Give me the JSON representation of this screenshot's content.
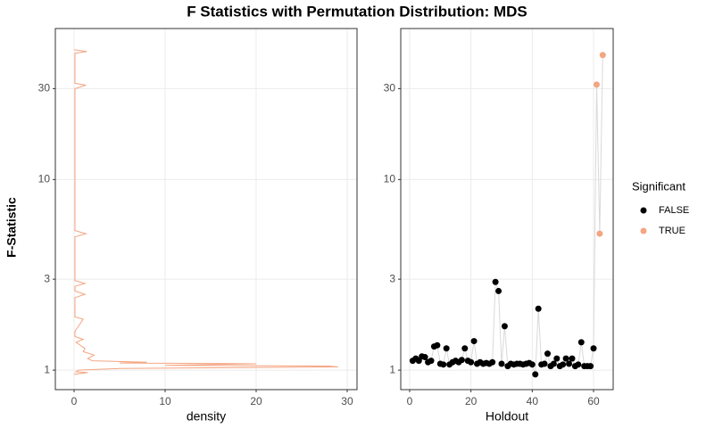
{
  "title": "F Statistics with Permutation Distribution: MDS",
  "y_label": "F-Statistic",
  "chart_data": [
    {
      "type": "line",
      "x_label": "density",
      "xlim": [
        -2.06,
        31.08
      ],
      "xticks": [
        0,
        10,
        20,
        30
      ],
      "ylim": [
        0.79,
        62
      ],
      "yticks": [
        1,
        3,
        10,
        30
      ],
      "y_log": true,
      "grid": true,
      "series": [
        {
          "color": "#f4a582",
          "x": [
            0,
            1.5,
            0.2,
            0.5,
            5,
            29,
            28,
            10,
            20,
            5,
            8,
            2,
            1.5,
            2.2,
            1.0,
            1.2,
            0.2,
            1.0,
            0.1,
            0.1,
            1.0,
            0.1,
            0.1,
            1.2,
            0.1,
            0.1,
            1.2,
            0.1,
            0.1,
            1.3,
            0.1,
            0.1,
            1.3,
            0.1,
            0.1,
            1.4,
            0
          ],
          "values": [
            0.95,
            0.97,
            0.98,
            1.0,
            1.02,
            1.04,
            1.05,
            1.06,
            1.08,
            1.09,
            1.1,
            1.12,
            1.15,
            1.2,
            1.25,
            1.3,
            1.4,
            1.45,
            1.5,
            1.6,
            1.85,
            1.9,
            2.4,
            2.5,
            2.6,
            2.75,
            2.85,
            2.95,
            5.0,
            5.2,
            5.4,
            30,
            31.3,
            32,
            46,
            47,
            48
          ]
        }
      ]
    },
    {
      "type": "scatter",
      "x_label": "Holdout",
      "xlim": [
        -2.9,
        66.4
      ],
      "xticks": [
        0,
        20,
        40,
        60
      ],
      "ylim": [
        0.79,
        62
      ],
      "yticks": [
        1,
        3,
        10,
        30
      ],
      "y_log": true,
      "grid": true,
      "line_color": "#d9d9d9",
      "legend_title": "Significant",
      "series": [
        {
          "name": "FALSE",
          "color": "#000000",
          "x": [
            1,
            2,
            3,
            4,
            5,
            6,
            7,
            8,
            9,
            10,
            11,
            12,
            13,
            14,
            15,
            16,
            17,
            18,
            19,
            20,
            21,
            22,
            23,
            24,
            25,
            26,
            27,
            28,
            29,
            30,
            31,
            32,
            33,
            34,
            35,
            36,
            37,
            38,
            39,
            40,
            41,
            42,
            43,
            44,
            45,
            46,
            47,
            48,
            49,
            50,
            51,
            52,
            53,
            54,
            55,
            56,
            57,
            58,
            59,
            60
          ],
          "values": [
            1.12,
            1.15,
            1.12,
            1.18,
            1.17,
            1.1,
            1.12,
            1.33,
            1.35,
            1.08,
            1.07,
            1.3,
            1.07,
            1.1,
            1.12,
            1.1,
            1.13,
            1.3,
            1.12,
            1.1,
            1.42,
            1.08,
            1.1,
            1.08,
            1.09,
            1.08,
            1.1,
            2.9,
            2.6,
            1.08,
            1.7,
            1.05,
            1.08,
            1.07,
            1.08,
            1.08,
            1.07,
            1.08,
            1.09,
            1.07,
            0.95,
            2.1,
            1.07,
            1.08,
            1.22,
            1.05,
            1.08,
            1.15,
            1.05,
            1.07,
            1.15,
            1.08,
            1.15,
            1.05,
            1.07,
            1.4,
            1.05,
            1.05,
            1.05,
            1.3
          ]
        },
        {
          "name": "TRUE",
          "color": "#f4a582",
          "x": [
            61,
            62,
            63
          ],
          "values": [
            31.5,
            5.2,
            45
          ]
        }
      ]
    }
  ]
}
